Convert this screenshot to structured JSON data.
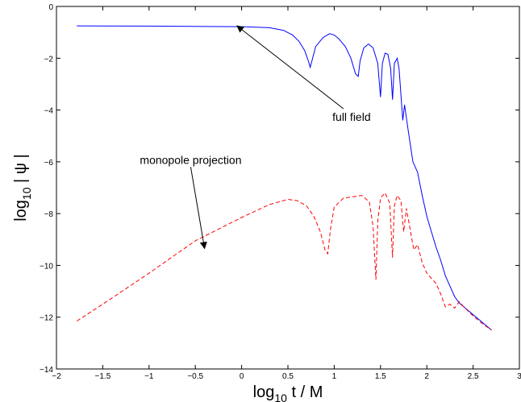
{
  "chart_data": {
    "type": "line",
    "title": "",
    "xlabel": "log₁₀ t / M",
    "ylabel": "log₁₀ | ψ |",
    "xlim": [
      -2,
      3
    ],
    "ylim": [
      -14,
      0
    ],
    "grid": false,
    "legend": "none",
    "x_ticks": [
      -2,
      -1.5,
      -1,
      -0.5,
      0,
      0.5,
      1,
      1.5,
      2,
      2.5,
      3
    ],
    "x_tick_labels": [
      "−2",
      "−1.5",
      "−1",
      "−0.5",
      "0",
      "0.5",
      "1",
      "1.5",
      "2",
      "2.5",
      "3"
    ],
    "y_ticks": [
      0,
      -2,
      -4,
      -6,
      -8,
      -10,
      -12,
      -14
    ],
    "y_tick_labels": [
      "0",
      "−2",
      "−4",
      "−6",
      "−8",
      "−10",
      "−12",
      "−14"
    ],
    "series": [
      {
        "style": "solid",
        "color": "#0000ff",
        "x": [
          -1.78,
          -1.0,
          0.0,
          0.3,
          0.45,
          0.55,
          0.62,
          0.68,
          0.72,
          0.74,
          0.76,
          0.8,
          0.88,
          0.95,
          1.0,
          1.05,
          1.12,
          1.18,
          1.23,
          1.26,
          1.28,
          1.32,
          1.37,
          1.42,
          1.47,
          1.5,
          1.52,
          1.55,
          1.58,
          1.61,
          1.63,
          1.65,
          1.68,
          1.7,
          1.72,
          1.74,
          1.76,
          1.8,
          1.85,
          1.9,
          1.95,
          2.0,
          2.05,
          2.1,
          2.15,
          2.2,
          2.25,
          2.3,
          2.35,
          2.4,
          2.45,
          2.5,
          2.55,
          2.6,
          2.65,
          2.7
        ],
        "y": [
          -0.75,
          -0.76,
          -0.78,
          -0.82,
          -0.92,
          -1.1,
          -1.35,
          -1.7,
          -2.1,
          -2.35,
          -2.1,
          -1.55,
          -1.2,
          -1.05,
          -1.1,
          -1.25,
          -1.55,
          -2.0,
          -2.6,
          -2.7,
          -2.1,
          -1.6,
          -1.45,
          -1.6,
          -2.2,
          -3.5,
          -2.2,
          -1.8,
          -1.85,
          -2.4,
          -3.6,
          -2.2,
          -2.0,
          -2.4,
          -3.4,
          -4.4,
          -3.8,
          -4.8,
          -6.0,
          -6.4,
          -7.3,
          -8.1,
          -8.7,
          -9.3,
          -9.8,
          -10.4,
          -10.8,
          -11.2,
          -11.45,
          -11.6,
          -11.75,
          -11.9,
          -12.05,
          -12.2,
          -12.35,
          -12.5
        ]
      },
      {
        "style": "dashed",
        "color": "#ff0000",
        "x": [
          -1.78,
          -1.5,
          -1.0,
          -0.5,
          0.0,
          0.3,
          0.5,
          0.6,
          0.7,
          0.78,
          0.85,
          0.9,
          0.93,
          0.96,
          1.0,
          1.1,
          1.2,
          1.3,
          1.38,
          1.42,
          1.45,
          1.47,
          1.5,
          1.55,
          1.6,
          1.63,
          1.65,
          1.68,
          1.72,
          1.75,
          1.78,
          1.82,
          1.86,
          1.9,
          1.95,
          2.0,
          2.05,
          2.1,
          2.15,
          2.2,
          2.25,
          2.3,
          2.35,
          2.4,
          2.5,
          2.6,
          2.7
        ],
        "y": [
          -12.15,
          -11.5,
          -10.3,
          -9.05,
          -8.15,
          -7.65,
          -7.45,
          -7.5,
          -7.7,
          -8.1,
          -8.7,
          -9.4,
          -9.55,
          -8.6,
          -7.75,
          -7.4,
          -7.35,
          -7.3,
          -7.55,
          -8.5,
          -10.55,
          -8.3,
          -7.4,
          -7.2,
          -7.6,
          -9.7,
          -7.7,
          -7.3,
          -7.5,
          -8.7,
          -7.8,
          -8.6,
          -9.4,
          -9.2,
          -9.9,
          -10.3,
          -10.5,
          -10.7,
          -11.1,
          -11.6,
          -11.5,
          -11.65,
          -11.4,
          -11.6,
          -11.95,
          -12.25,
          -12.5
        ]
      }
    ],
    "annotations": [
      {
        "text": "full field",
        "arrow_from": [
          1.1,
          -3.95
        ],
        "arrow_to": [
          -0.05,
          -0.75
        ]
      },
      {
        "text": "monopole projection",
        "arrow_from": [
          -0.55,
          -6.2
        ],
        "arrow_to": [
          -0.4,
          -9.35
        ]
      }
    ]
  }
}
